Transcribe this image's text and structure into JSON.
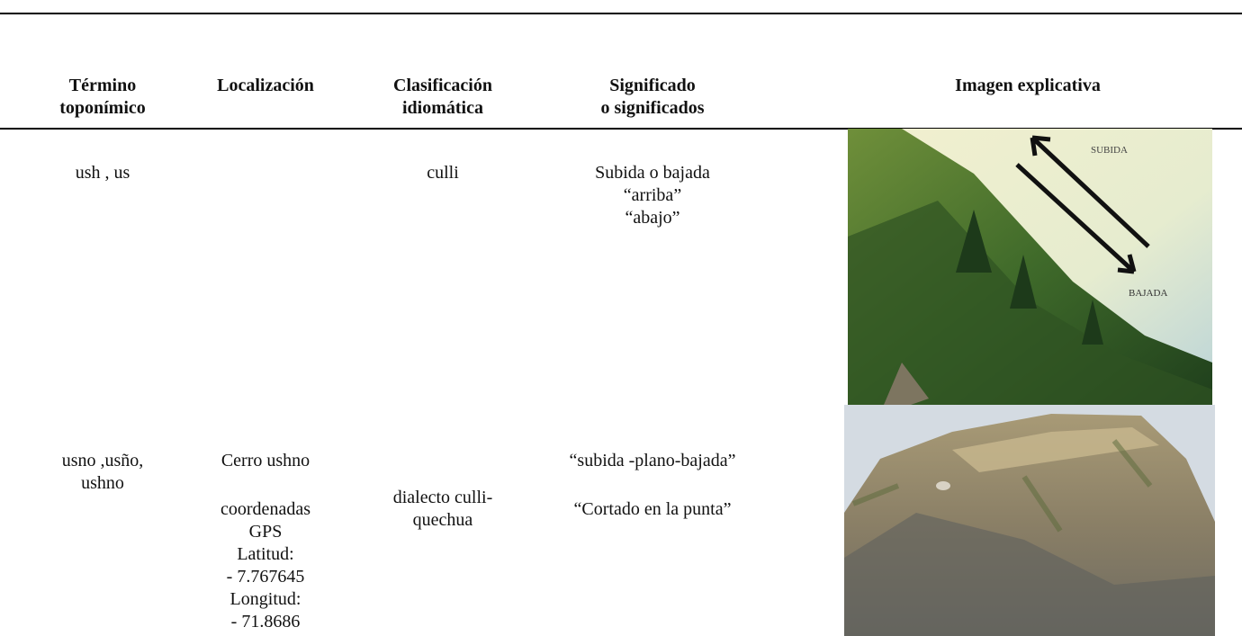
{
  "table": {
    "headers": [
      [
        "Término",
        "toponímico"
      ],
      [
        "Localización"
      ],
      [
        "Clasificación",
        "idiomática"
      ],
      [
        "Significado",
        "o significados"
      ],
      [
        "Imagen explicativa"
      ]
    ],
    "rows": [
      {
        "cells": [
          [
            "ush , us"
          ],
          [],
          [
            "culli"
          ],
          [
            "Subida o bajada",
            "“arriba”",
            "“abajo”"
          ]
        ],
        "image_labels": [
          "SUBIDA",
          "BAJADA"
        ]
      },
      {
        "cells": [
          [
            "usno ,usño,",
            "ushno"
          ],
          [
            "Cerro ushno",
            "coordenadas",
            "GPS",
            "Latitud:",
            "- 7.767645",
            "Longitud:",
            "- 71.8686"
          ],
          [
            "dialecto culli-",
            "quechua"
          ],
          [
            "“subida -plano-bajada”",
            "“Cortado en la punta”"
          ]
        ]
      }
    ]
  }
}
